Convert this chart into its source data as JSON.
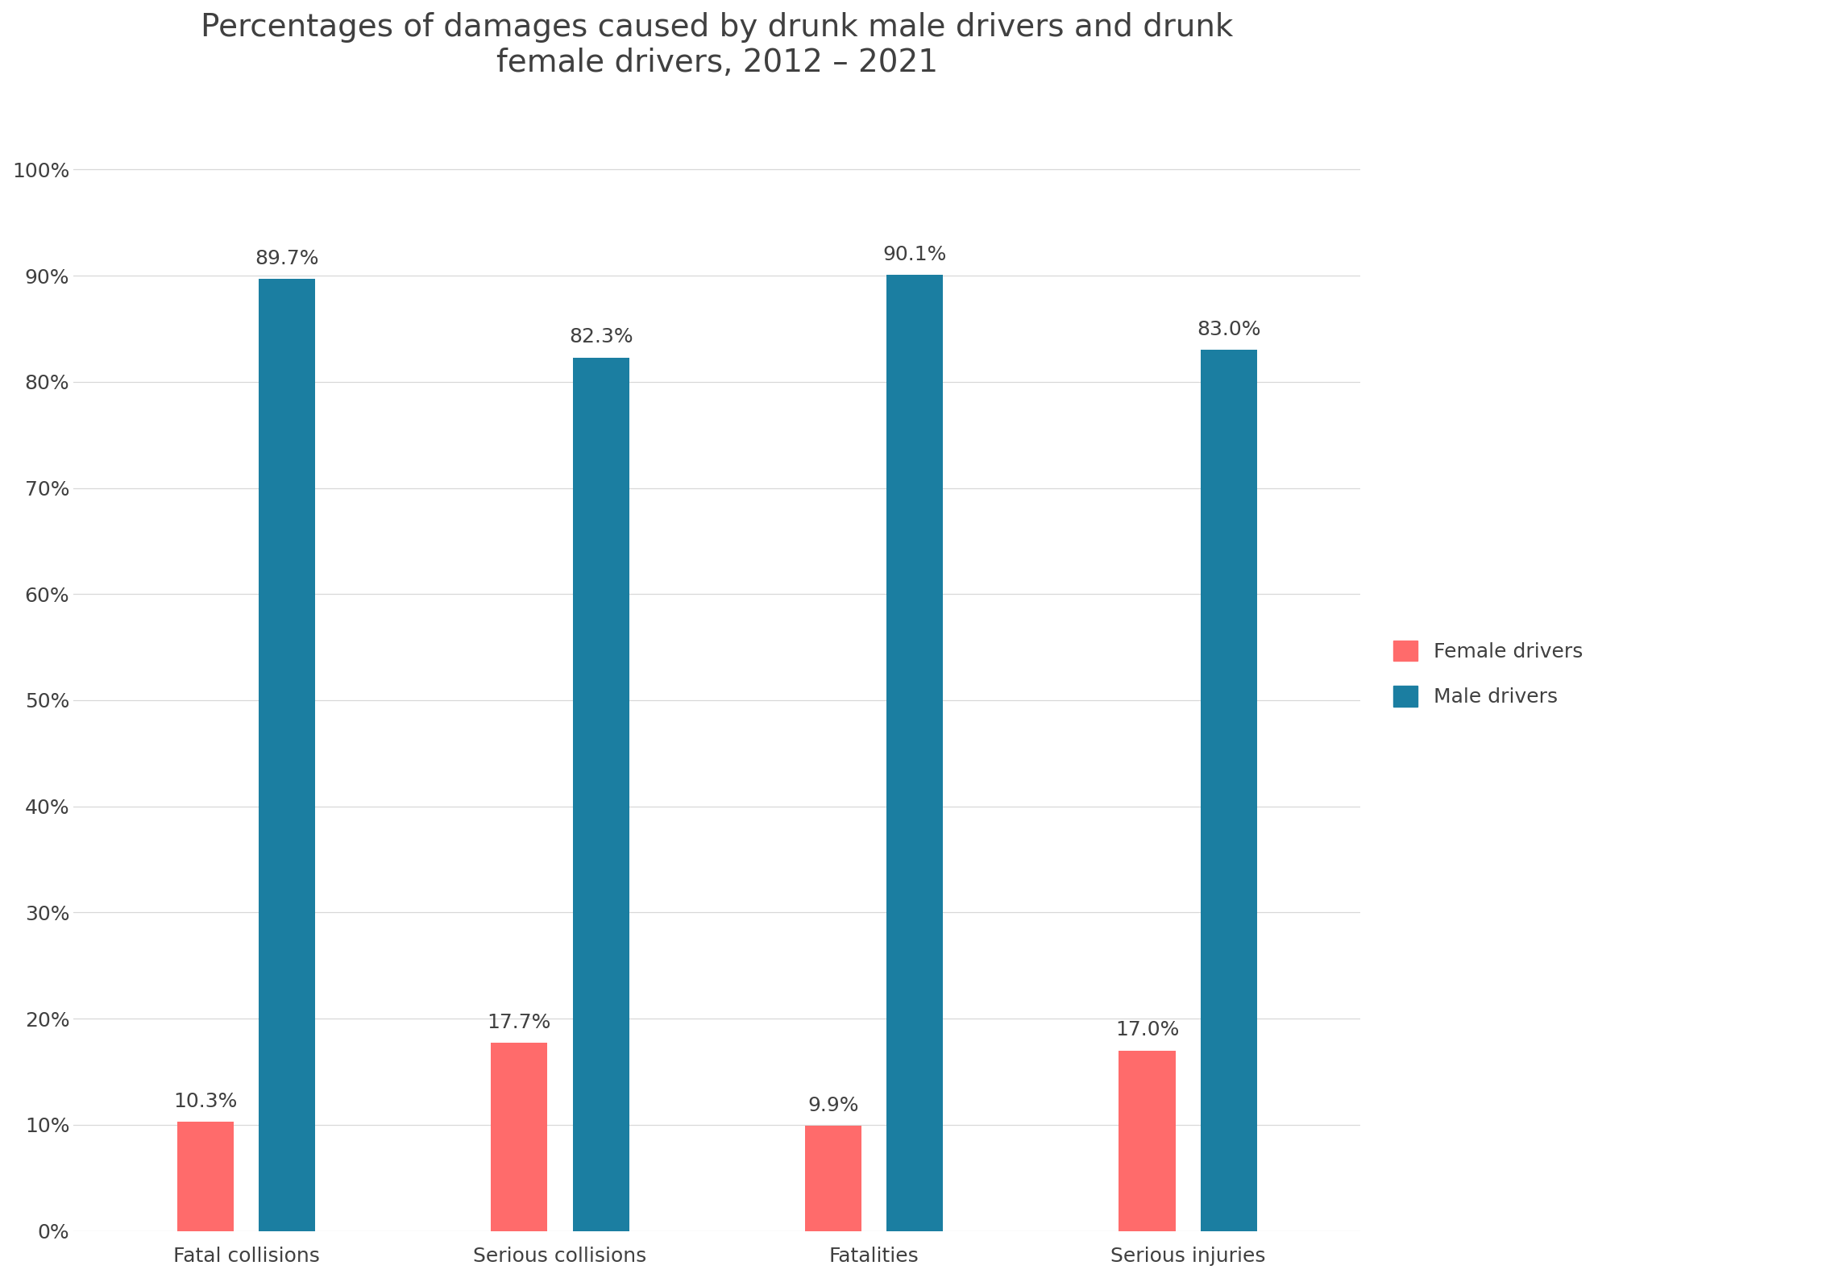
{
  "title": "Percentages of damages caused by drunk male drivers and drunk\nfemale drivers, 2012 – 2021",
  "categories": [
    "Fatal collisions",
    "Serious collisions",
    "Fatalities",
    "Serious injuries"
  ],
  "female_values": [
    10.3,
    17.7,
    9.9,
    17.0
  ],
  "male_values": [
    89.7,
    82.3,
    90.1,
    83.0
  ],
  "female_color": "#FF6B6B",
  "male_color": "#1B7EA1",
  "female_label": "Female drivers",
  "male_label": "Male drivers",
  "ylim": [
    0,
    105
  ],
  "yticks": [
    0,
    10,
    20,
    30,
    40,
    50,
    60,
    70,
    80,
    90,
    100
  ],
  "ytick_labels": [
    "0%",
    "10%",
    "20%",
    "30%",
    "40%",
    "50%",
    "60%",
    "70%",
    "80%",
    "90%",
    "100%"
  ],
  "background_color": "#ffffff",
  "title_color": "#404040",
  "label_color": "#404040",
  "grid_color": "#d8d8d8",
  "title_fontsize": 28,
  "tick_fontsize": 18,
  "bar_label_fontsize": 18,
  "legend_fontsize": 18,
  "category_fontsize": 18,
  "bar_width": 0.18,
  "bar_gap": 0.08
}
